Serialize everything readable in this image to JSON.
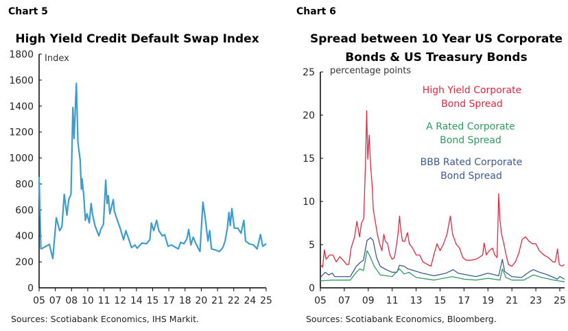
{
  "chart_data": [
    {
      "type": "line",
      "header": "Chart 5",
      "title": "High Yield Credit Default Swap Index",
      "ylabel": "Index",
      "source": "Sources: Scotiabank Economics, IHS Markit.",
      "ylim": [
        0,
        1800
      ],
      "yticks": [
        0,
        200,
        400,
        600,
        800,
        1000,
        1200,
        1400,
        1600,
        1800
      ],
      "xlim": [
        2005,
        2025
      ],
      "xtick_labels": [
        "05",
        "07",
        "08",
        "10",
        "11",
        "12",
        "14",
        "15",
        "17",
        "18",
        "20",
        "21",
        "22",
        "24",
        "25"
      ],
      "grid": false,
      "colors": {
        "line": "#3b9bd3"
      },
      "series": [
        {
          "x": [
            2005.0,
            2005.16,
            2005.4,
            2005.9,
            2006.21,
            2006.51,
            2006.81,
            2007.01,
            2007.21,
            2007.45,
            2007.61,
            2007.81,
            2007.97,
            2008.08,
            2008.28,
            2008.42,
            2008.62,
            2008.72,
            2008.78,
            2008.92,
            2009.08,
            2009.22,
            2009.42,
            2009.58,
            2009.72,
            2009.92,
            2010.13,
            2010.27,
            2010.43,
            2010.67,
            2010.87,
            2010.99,
            2011.09,
            2011.23,
            2011.53,
            2011.63,
            2011.93,
            2012.14,
            2012.44,
            2012.64,
            2012.84,
            2013.14,
            2013.44,
            2013.64,
            2014.05,
            2014.45,
            2014.75,
            2014.89,
            2015.09,
            2015.35,
            2015.55,
            2015.85,
            2016.06,
            2016.36,
            2016.66,
            2017.06,
            2017.26,
            2017.46,
            2017.76,
            2018.03,
            2018.17,
            2018.37,
            2018.57,
            2018.87,
            2019.17,
            2019.43,
            2019.63,
            2019.87,
            2020.03,
            2020.18,
            2020.58,
            2020.88,
            2021.18,
            2021.38,
            2021.58,
            2021.72,
            2021.84,
            2021.98,
            2022.19,
            2022.49,
            2022.79,
            2023.03,
            2023.19,
            2023.49,
            2023.89,
            2024.2,
            2024.5,
            2024.7,
            2025.0
          ],
          "y": [
            855,
            300,
            310,
            335,
            225,
            540,
            440,
            470,
            720,
            560,
            680,
            720,
            1390,
            1150,
            1575,
            1120,
            980,
            760,
            840,
            720,
            520,
            570,
            500,
            650,
            560,
            480,
            430,
            400,
            450,
            490,
            830,
            650,
            710,
            570,
            680,
            590,
            510,
            460,
            370,
            440,
            390,
            310,
            330,
            305,
            345,
            340,
            370,
            500,
            440,
            520,
            440,
            400,
            410,
            320,
            330,
            310,
            300,
            350,
            340,
            380,
            450,
            330,
            390,
            330,
            280,
            660,
            540,
            360,
            440,
            300,
            290,
            280,
            310,
            360,
            460,
            580,
            480,
            610,
            460,
            460,
            420,
            520,
            360,
            340,
            330,
            300,
            410,
            320,
            340
          ]
        }
      ]
    },
    {
      "type": "line",
      "header": "Chart 6",
      "title": [
        "Spread between 10 Year US Corporate",
        "Bonds & US Treasury Bonds"
      ],
      "ylabel": "percentage points",
      "source": "Sources: Scotiabank Economics, Bloomberg.",
      "ylim": [
        0,
        25
      ],
      "yticks": [
        0,
        5,
        10,
        15,
        20,
        25
      ],
      "xlim": [
        2005,
        2025.4
      ],
      "xtick_labels": [
        "05",
        "07",
        "09",
        "11",
        "13",
        "15",
        "17",
        "19",
        "21",
        "23",
        "25"
      ],
      "xtick_values": [
        2005,
        2007,
        2009,
        2011,
        2013,
        2015,
        2017,
        2019,
        2021,
        2023,
        2025
      ],
      "grid": false,
      "legend": "top-right",
      "series": [
        {
          "name": [
            "High Yield Corporate",
            "Bond Spread"
          ],
          "color": "#e8253c",
          "x": [
            2005.0,
            2005.19,
            2005.34,
            2005.48,
            2005.76,
            2006.05,
            2006.33,
            2006.62,
            2006.9,
            2007.19,
            2007.38,
            2007.57,
            2007.86,
            2008.05,
            2008.28,
            2008.43,
            2008.62,
            2008.77,
            2008.87,
            2008.96,
            2009.08,
            2009.19,
            2009.34,
            2009.42,
            2009.57,
            2009.76,
            2009.95,
            2010.14,
            2010.3,
            2010.43,
            2010.62,
            2010.81,
            2011.0,
            2011.19,
            2011.38,
            2011.48,
            2011.61,
            2011.72,
            2011.86,
            2012.05,
            2012.28,
            2012.43,
            2012.71,
            2013.0,
            2013.29,
            2013.57,
            2013.95,
            2014.24,
            2014.52,
            2014.75,
            2015.0,
            2015.29,
            2015.57,
            2015.86,
            2016.05,
            2016.33,
            2016.62,
            2016.9,
            2017.19,
            2017.57,
            2017.95,
            2018.24,
            2018.56,
            2018.68,
            2018.87,
            2019.1,
            2019.38,
            2019.57,
            2019.76,
            2019.9,
            2020.01,
            2020.14,
            2020.33,
            2020.52,
            2020.71,
            2021.0,
            2021.29,
            2021.57,
            2021.86,
            2022.14,
            2022.43,
            2022.71,
            2023.0,
            2023.29,
            2023.67,
            2024.05,
            2024.43,
            2024.62,
            2024.81,
            2024.96,
            2025.19,
            2025.38
          ],
          "y": [
            2.7,
            2.4,
            4.4,
            3.3,
            3.8,
            3.8,
            3.0,
            3.6,
            3.2,
            2.7,
            2.7,
            4.6,
            5.9,
            7.7,
            5.9,
            7.5,
            8.0,
            14.4,
            20.5,
            14.9,
            17.7,
            14.4,
            11.5,
            9.1,
            7.8,
            6.2,
            5.1,
            4.3,
            6.2,
            5.4,
            5.1,
            3.8,
            3.3,
            3.5,
            5.1,
            6.2,
            8.3,
            6.7,
            5.4,
            5.4,
            6.4,
            5.1,
            4.6,
            3.8,
            3.8,
            3.0,
            2.7,
            2.5,
            4.0,
            5.1,
            4.3,
            5.1,
            6.2,
            8.3,
            6.2,
            5.1,
            4.6,
            3.5,
            3.2,
            3.2,
            3.3,
            3.5,
            3.8,
            5.2,
            3.8,
            4.3,
            4.6,
            3.8,
            3.5,
            10.9,
            7.8,
            6.2,
            5.1,
            3.8,
            2.7,
            2.5,
            3.0,
            4.0,
            5.6,
            5.9,
            5.4,
            5.1,
            5.1,
            4.3,
            3.8,
            3.5,
            3.0,
            3.0,
            4.5,
            2.7,
            2.5,
            2.7
          ]
        },
        {
          "name": [
            "A Rated Corporate",
            "Bond Spread"
          ],
          "color": "#2e9a5e",
          "x": [
            2005.0,
            2006.0,
            2007.5,
            2008.0,
            2008.3,
            2008.6,
            2008.9,
            2009.1,
            2009.5,
            2010.0,
            2011.0,
            2011.6,
            2012.0,
            2012.4,
            2013.0,
            2014.5,
            2016.0,
            2017.0,
            2018.0,
            2019.0,
            2020.0,
            2020.2,
            2020.5,
            2021.0,
            2022.0,
            2022.8,
            2023.5,
            2024.5,
            2025.4
          ],
          "y": [
            0.8,
            0.9,
            0.9,
            1.8,
            2.2,
            2.0,
            4.3,
            3.8,
            2.5,
            1.5,
            1.3,
            2.2,
            1.6,
            1.8,
            1.2,
            0.9,
            1.3,
            1.0,
            0.9,
            1.1,
            0.9,
            2.2,
            1.2,
            0.9,
            0.9,
            1.5,
            1.2,
            0.9,
            0.7
          ]
        },
        {
          "name": [
            "BBB Rated Corporate",
            "Bond Spread"
          ],
          "color": "#3b5a92",
          "x": [
            2005.0,
            2005.4,
            2005.7,
            2006.0,
            2006.2,
            2007.5,
            2008.0,
            2008.3,
            2008.6,
            2008.9,
            2009.2,
            2009.4,
            2009.7,
            2010.0,
            2010.5,
            2011.0,
            2011.4,
            2011.6,
            2012.0,
            2012.3,
            2012.8,
            2013.5,
            2014.5,
            2015.5,
            2016.1,
            2016.5,
            2018.0,
            2019.0,
            2019.9,
            2020.2,
            2020.4,
            2021.0,
            2021.8,
            2022.5,
            2022.8,
            2023.3,
            2024.0,
            2024.8,
            2025.0,
            2025.4
          ],
          "y": [
            1.2,
            1.8,
            1.5,
            1.7,
            1.3,
            1.3,
            2.5,
            2.9,
            3.2,
            5.5,
            5.8,
            5.5,
            3.5,
            2.5,
            2.1,
            1.8,
            1.8,
            2.6,
            2.5,
            2.2,
            2.0,
            1.7,
            1.4,
            1.7,
            2.1,
            1.7,
            1.3,
            1.7,
            1.4,
            3.3,
            1.9,
            1.3,
            1.2,
            1.9,
            2.1,
            1.8,
            1.5,
            1.0,
            1.3,
            1.0
          ]
        }
      ]
    }
  ]
}
